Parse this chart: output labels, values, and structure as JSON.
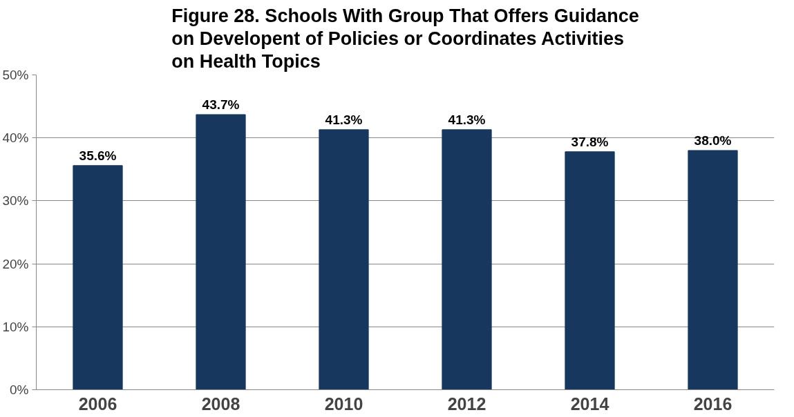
{
  "chart_data": {
    "type": "bar",
    "title": "Figure 28. Schools With Group That Offers Guidance on Developent of Policies or Coordinates Activities on Health Topics",
    "categories": [
      "2006",
      "2008",
      "2010",
      "2012",
      "2014",
      "2016"
    ],
    "values": [
      35.6,
      43.7,
      41.3,
      41.3,
      37.8,
      38.0
    ],
    "value_labels": [
      "35.6%",
      "43.7%",
      "41.3%",
      "41.3%",
      "37.8%",
      "38.0%"
    ],
    "color": "#17375e",
    "ylim": [
      0,
      50
    ],
    "yticks": [
      {
        "value": 0,
        "label": "0%"
      },
      {
        "value": 10,
        "label": "10%"
      },
      {
        "value": 20,
        "label": "20%"
      },
      {
        "value": 30,
        "label": "30%"
      },
      {
        "value": 40,
        "label": "40%"
      },
      {
        "value": 50,
        "label": "50%"
      }
    ],
    "grid": "y"
  }
}
